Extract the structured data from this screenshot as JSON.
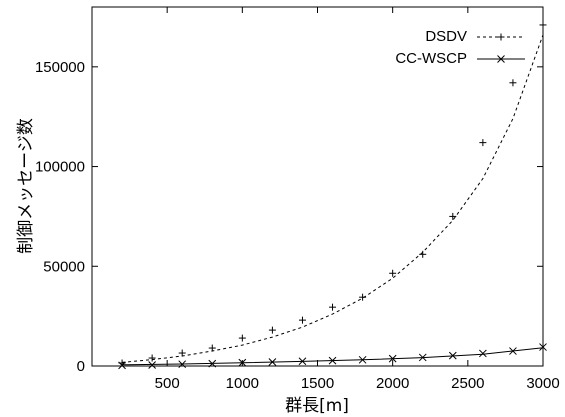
{
  "chart_data": {
    "type": "scatter",
    "title": "",
    "xlabel": "群長[m]",
    "ylabel": "制御メッセージ数",
    "xlim": [
      0,
      3000
    ],
    "ylim": [
      0,
      180000
    ],
    "xticks": [
      500,
      1000,
      1500,
      2000,
      2500,
      3000
    ],
    "yticks": [
      0,
      50000,
      100000,
      150000
    ],
    "grid": false,
    "legend_position": "top-right",
    "series": [
      {
        "name": "DSDV",
        "marker": "plus",
        "line_style": "dashed",
        "points": {
          "x": [
            200,
            400,
            600,
            800,
            1000,
            1200,
            1400,
            1600,
            1800,
            2000,
            2200,
            2400,
            2600,
            2800,
            3000
          ],
          "y": [
            1500,
            4000,
            6500,
            9000,
            14000,
            18000,
            23000,
            29500,
            34500,
            46500,
            56000,
            75000,
            112000,
            142000,
            171000
          ]
        },
        "fit_curve": {
          "x": [
            200,
            400,
            600,
            800,
            1000,
            1200,
            1400,
            1600,
            1800,
            2000,
            2200,
            2400,
            2600,
            2800,
            3000
          ],
          "y": [
            1800,
            3200,
            5000,
            7500,
            10500,
            14500,
            19500,
            26000,
            34000,
            44000,
            57000,
            73000,
            94000,
            124000,
            166000
          ]
        }
      },
      {
        "name": "CC-WSCP",
        "marker": "x",
        "line_style": "solid",
        "points": {
          "x": [
            200,
            400,
            600,
            800,
            1000,
            1200,
            1400,
            1600,
            1800,
            2000,
            2200,
            2400,
            2600,
            2800,
            3000
          ],
          "y": [
            300,
            500,
            900,
            1200,
            1700,
            2000,
            2400,
            2700,
            3100,
            3700,
            4300,
            5200,
            6300,
            7500,
            9500
          ]
        },
        "fit_curve": {
          "x": [
            200,
            600,
            1000,
            1400,
            1800,
            2200,
            2600,
            3000
          ],
          "y": [
            600,
            1000,
            1600,
            2300,
            3100,
            4200,
            5900,
            9200
          ]
        }
      }
    ]
  }
}
